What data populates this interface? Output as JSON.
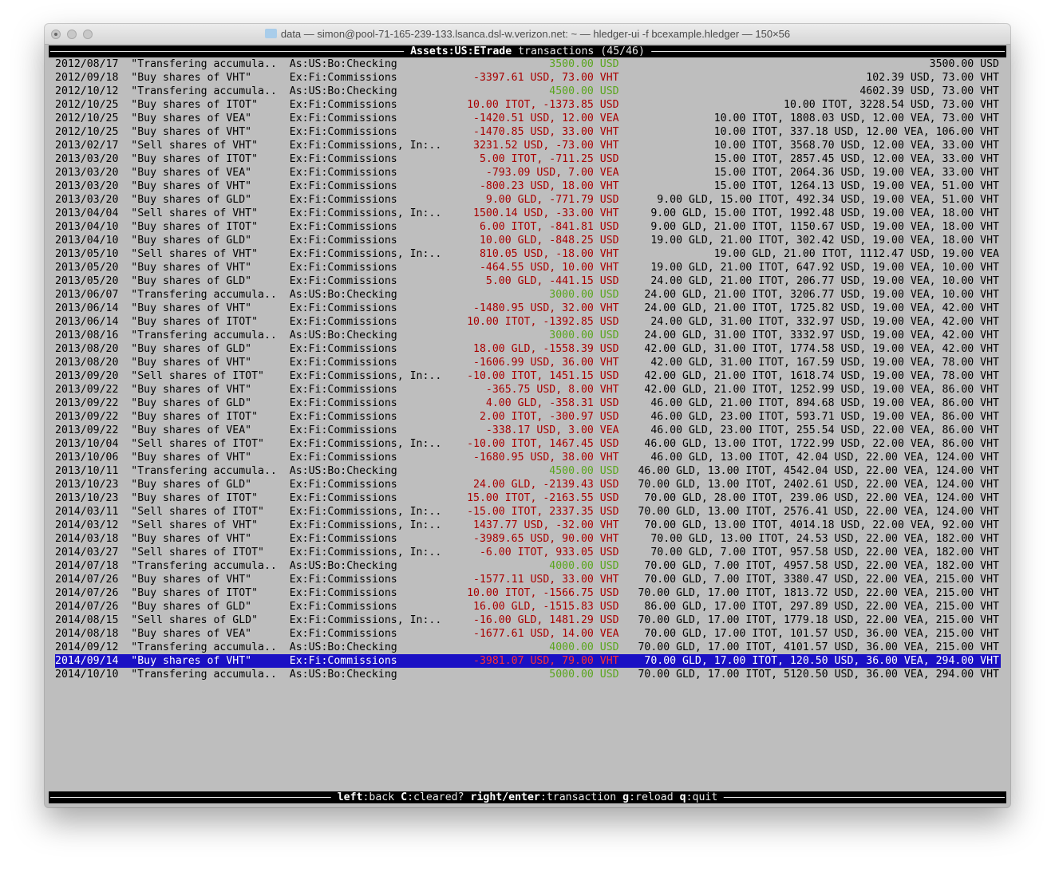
{
  "window": {
    "title": "data — simon@pool-71-165-239-133.lsanca.dsl-w.verizon.net: ~ — hledger-ui -f bcexample.hledger — 150×56"
  },
  "header": {
    "account": "Assets:US:ETrade",
    "suffix": " transactions (45/46)"
  },
  "footer": {
    "keys": [
      {
        "key": "left",
        "action": "back"
      },
      {
        "key": "C",
        "action": "cleared?"
      },
      {
        "key": "right/enter",
        "action": "transaction"
      },
      {
        "key": "g",
        "action": "reload"
      },
      {
        "key": "q",
        "action": "quit"
      }
    ]
  },
  "colors": {
    "background": "#bebebe",
    "positive": "#5aa51e",
    "negative": "#a80000",
    "selected_bg": "#1a10c4",
    "selected_negative": "#ff3030"
  },
  "selected_index": 44,
  "rows": [
    {
      "date": "2012/08/17",
      "desc": "\"Transfering accumula..",
      "acct": "As:US:Bo:Checking",
      "amt": "3500.00 USD",
      "bal": "3500.00 USD",
      "sign": "positive"
    },
    {
      "date": "2012/09/18",
      "desc": "\"Buy shares of VHT\"",
      "acct": "Ex:Fi:Commissions",
      "amt": "-3397.61 USD, 73.00 VHT",
      "bal": "102.39 USD, 73.00 VHT",
      "sign": "negative"
    },
    {
      "date": "2012/10/12",
      "desc": "\"Transfering accumula..",
      "acct": "As:US:Bo:Checking",
      "amt": "4500.00 USD",
      "bal": "4602.39 USD, 73.00 VHT",
      "sign": "positive"
    },
    {
      "date": "2012/10/25",
      "desc": "\"Buy shares of ITOT\"",
      "acct": "Ex:Fi:Commissions",
      "amt": "10.00 ITOT, -1373.85 USD",
      "bal": "10.00 ITOT, 3228.54 USD, 73.00 VHT",
      "sign": "negative"
    },
    {
      "date": "2012/10/25",
      "desc": "\"Buy shares of VEA\"",
      "acct": "Ex:Fi:Commissions",
      "amt": "-1420.51 USD, 12.00 VEA",
      "bal": "10.00 ITOT, 1808.03 USD, 12.00 VEA, 73.00 VHT",
      "sign": "negative"
    },
    {
      "date": "2012/10/25",
      "desc": "\"Buy shares of VHT\"",
      "acct": "Ex:Fi:Commissions",
      "amt": "-1470.85 USD, 33.00 VHT",
      "bal": "10.00 ITOT, 337.18 USD, 12.00 VEA, 106.00 VHT",
      "sign": "negative"
    },
    {
      "date": "2013/02/17",
      "desc": "\"Sell shares of VHT\"",
      "acct": "Ex:Fi:Commissions, In:..",
      "amt": "3231.52 USD, -73.00 VHT",
      "bal": "10.00 ITOT, 3568.70 USD, 12.00 VEA, 33.00 VHT",
      "sign": "negative"
    },
    {
      "date": "2013/03/20",
      "desc": "\"Buy shares of ITOT\"",
      "acct": "Ex:Fi:Commissions",
      "amt": "5.00 ITOT, -711.25 USD",
      "bal": "15.00 ITOT, 2857.45 USD, 12.00 VEA, 33.00 VHT",
      "sign": "negative"
    },
    {
      "date": "2013/03/20",
      "desc": "\"Buy shares of VEA\"",
      "acct": "Ex:Fi:Commissions",
      "amt": "-793.09 USD, 7.00 VEA",
      "bal": "15.00 ITOT, 2064.36 USD, 19.00 VEA, 33.00 VHT",
      "sign": "negative"
    },
    {
      "date": "2013/03/20",
      "desc": "\"Buy shares of VHT\"",
      "acct": "Ex:Fi:Commissions",
      "amt": "-800.23 USD, 18.00 VHT",
      "bal": "15.00 ITOT, 1264.13 USD, 19.00 VEA, 51.00 VHT",
      "sign": "negative"
    },
    {
      "date": "2013/03/20",
      "desc": "\"Buy shares of GLD\"",
      "acct": "Ex:Fi:Commissions",
      "amt": "9.00 GLD, -771.79 USD",
      "bal": "9.00 GLD, 15.00 ITOT, 492.34 USD, 19.00 VEA, 51.00 VHT",
      "sign": "negative"
    },
    {
      "date": "2013/04/04",
      "desc": "\"Sell shares of VHT\"",
      "acct": "Ex:Fi:Commissions, In:..",
      "amt": "1500.14 USD, -33.00 VHT",
      "bal": "9.00 GLD, 15.00 ITOT, 1992.48 USD, 19.00 VEA, 18.00 VHT",
      "sign": "negative"
    },
    {
      "date": "2013/04/10",
      "desc": "\"Buy shares of ITOT\"",
      "acct": "Ex:Fi:Commissions",
      "amt": "6.00 ITOT, -841.81 USD",
      "bal": "9.00 GLD, 21.00 ITOT, 1150.67 USD, 19.00 VEA, 18.00 VHT",
      "sign": "negative"
    },
    {
      "date": "2013/04/10",
      "desc": "\"Buy shares of GLD\"",
      "acct": "Ex:Fi:Commissions",
      "amt": "10.00 GLD, -848.25 USD",
      "bal": "19.00 GLD, 21.00 ITOT, 302.42 USD, 19.00 VEA, 18.00 VHT",
      "sign": "negative"
    },
    {
      "date": "2013/05/10",
      "desc": "\"Sell shares of VHT\"",
      "acct": "Ex:Fi:Commissions, In:..",
      "amt": "810.05 USD, -18.00 VHT",
      "bal": "19.00 GLD, 21.00 ITOT, 1112.47 USD, 19.00 VEA",
      "sign": "negative"
    },
    {
      "date": "2013/05/20",
      "desc": "\"Buy shares of VHT\"",
      "acct": "Ex:Fi:Commissions",
      "amt": "-464.55 USD, 10.00 VHT",
      "bal": "19.00 GLD, 21.00 ITOT, 647.92 USD, 19.00 VEA, 10.00 VHT",
      "sign": "negative"
    },
    {
      "date": "2013/05/20",
      "desc": "\"Buy shares of GLD\"",
      "acct": "Ex:Fi:Commissions",
      "amt": "5.00 GLD, -441.15 USD",
      "bal": "24.00 GLD, 21.00 ITOT, 206.77 USD, 19.00 VEA, 10.00 VHT",
      "sign": "negative"
    },
    {
      "date": "2013/06/07",
      "desc": "\"Transfering accumula..",
      "acct": "As:US:Bo:Checking",
      "amt": "3000.00 USD",
      "bal": "24.00 GLD, 21.00 ITOT, 3206.77 USD, 19.00 VEA, 10.00 VHT",
      "sign": "positive"
    },
    {
      "date": "2013/06/14",
      "desc": "\"Buy shares of VHT\"",
      "acct": "Ex:Fi:Commissions",
      "amt": "-1480.95 USD, 32.00 VHT",
      "bal": "24.00 GLD, 21.00 ITOT, 1725.82 USD, 19.00 VEA, 42.00 VHT",
      "sign": "negative"
    },
    {
      "date": "2013/06/14",
      "desc": "\"Buy shares of ITOT\"",
      "acct": "Ex:Fi:Commissions",
      "amt": "10.00 ITOT, -1392.85 USD",
      "bal": "24.00 GLD, 31.00 ITOT, 332.97 USD, 19.00 VEA, 42.00 VHT",
      "sign": "negative"
    },
    {
      "date": "2013/08/16",
      "desc": "\"Transfering accumula..",
      "acct": "As:US:Bo:Checking",
      "amt": "3000.00 USD",
      "bal": "24.00 GLD, 31.00 ITOT, 3332.97 USD, 19.00 VEA, 42.00 VHT",
      "sign": "positive"
    },
    {
      "date": "2013/08/20",
      "desc": "\"Buy shares of GLD\"",
      "acct": "Ex:Fi:Commissions",
      "amt": "18.00 GLD, -1558.39 USD",
      "bal": "42.00 GLD, 31.00 ITOT, 1774.58 USD, 19.00 VEA, 42.00 VHT",
      "sign": "negative"
    },
    {
      "date": "2013/08/20",
      "desc": "\"Buy shares of VHT\"",
      "acct": "Ex:Fi:Commissions",
      "amt": "-1606.99 USD, 36.00 VHT",
      "bal": "42.00 GLD, 31.00 ITOT, 167.59 USD, 19.00 VEA, 78.00 VHT",
      "sign": "negative"
    },
    {
      "date": "2013/09/20",
      "desc": "\"Sell shares of ITOT\"",
      "acct": "Ex:Fi:Commissions, In:..",
      "amt": "-10.00 ITOT, 1451.15 USD",
      "bal": "42.00 GLD, 21.00 ITOT, 1618.74 USD, 19.00 VEA, 78.00 VHT",
      "sign": "negative"
    },
    {
      "date": "2013/09/22",
      "desc": "\"Buy shares of VHT\"",
      "acct": "Ex:Fi:Commissions",
      "amt": "-365.75 USD, 8.00 VHT",
      "bal": "42.00 GLD, 21.00 ITOT, 1252.99 USD, 19.00 VEA, 86.00 VHT",
      "sign": "negative"
    },
    {
      "date": "2013/09/22",
      "desc": "\"Buy shares of GLD\"",
      "acct": "Ex:Fi:Commissions",
      "amt": "4.00 GLD, -358.31 USD",
      "bal": "46.00 GLD, 21.00 ITOT, 894.68 USD, 19.00 VEA, 86.00 VHT",
      "sign": "negative"
    },
    {
      "date": "2013/09/22",
      "desc": "\"Buy shares of ITOT\"",
      "acct": "Ex:Fi:Commissions",
      "amt": "2.00 ITOT, -300.97 USD",
      "bal": "46.00 GLD, 23.00 ITOT, 593.71 USD, 19.00 VEA, 86.00 VHT",
      "sign": "negative"
    },
    {
      "date": "2013/09/22",
      "desc": "\"Buy shares of VEA\"",
      "acct": "Ex:Fi:Commissions",
      "amt": "-338.17 USD, 3.00 VEA",
      "bal": "46.00 GLD, 23.00 ITOT, 255.54 USD, 22.00 VEA, 86.00 VHT",
      "sign": "negative"
    },
    {
      "date": "2013/10/04",
      "desc": "\"Sell shares of ITOT\"",
      "acct": "Ex:Fi:Commissions, In:..",
      "amt": "-10.00 ITOT, 1467.45 USD",
      "bal": "46.00 GLD, 13.00 ITOT, 1722.99 USD, 22.00 VEA, 86.00 VHT",
      "sign": "negative"
    },
    {
      "date": "2013/10/06",
      "desc": "\"Buy shares of VHT\"",
      "acct": "Ex:Fi:Commissions",
      "amt": "-1680.95 USD, 38.00 VHT",
      "bal": "46.00 GLD, 13.00 ITOT, 42.04 USD, 22.00 VEA, 124.00 VHT",
      "sign": "negative"
    },
    {
      "date": "2013/10/11",
      "desc": "\"Transfering accumula..",
      "acct": "As:US:Bo:Checking",
      "amt": "4500.00 USD",
      "bal": "46.00 GLD, 13.00 ITOT, 4542.04 USD, 22.00 VEA, 124.00 VHT",
      "sign": "positive"
    },
    {
      "date": "2013/10/23",
      "desc": "\"Buy shares of GLD\"",
      "acct": "Ex:Fi:Commissions",
      "amt": "24.00 GLD, -2139.43 USD",
      "bal": "70.00 GLD, 13.00 ITOT, 2402.61 USD, 22.00 VEA, 124.00 VHT",
      "sign": "negative"
    },
    {
      "date": "2013/10/23",
      "desc": "\"Buy shares of ITOT\"",
      "acct": "Ex:Fi:Commissions",
      "amt": "15.00 ITOT, -2163.55 USD",
      "bal": "70.00 GLD, 28.00 ITOT, 239.06 USD, 22.00 VEA, 124.00 VHT",
      "sign": "negative"
    },
    {
      "date": "2014/03/11",
      "desc": "\"Sell shares of ITOT\"",
      "acct": "Ex:Fi:Commissions, In:..",
      "amt": "-15.00 ITOT, 2337.35 USD",
      "bal": "70.00 GLD, 13.00 ITOT, 2576.41 USD, 22.00 VEA, 124.00 VHT",
      "sign": "negative"
    },
    {
      "date": "2014/03/12",
      "desc": "\"Sell shares of VHT\"",
      "acct": "Ex:Fi:Commissions, In:..",
      "amt": "1437.77 USD, -32.00 VHT",
      "bal": "70.00 GLD, 13.00 ITOT, 4014.18 USD, 22.00 VEA, 92.00 VHT",
      "sign": "negative"
    },
    {
      "date": "2014/03/18",
      "desc": "\"Buy shares of VHT\"",
      "acct": "Ex:Fi:Commissions",
      "amt": "-3989.65 USD, 90.00 VHT",
      "bal": "70.00 GLD, 13.00 ITOT, 24.53 USD, 22.00 VEA, 182.00 VHT",
      "sign": "negative"
    },
    {
      "date": "2014/03/27",
      "desc": "\"Sell shares of ITOT\"",
      "acct": "Ex:Fi:Commissions, In:..",
      "amt": "-6.00 ITOT, 933.05 USD",
      "bal": "70.00 GLD, 7.00 ITOT, 957.58 USD, 22.00 VEA, 182.00 VHT",
      "sign": "negative"
    },
    {
      "date": "2014/07/18",
      "desc": "\"Transfering accumula..",
      "acct": "As:US:Bo:Checking",
      "amt": "4000.00 USD",
      "bal": "70.00 GLD, 7.00 ITOT, 4957.58 USD, 22.00 VEA, 182.00 VHT",
      "sign": "positive"
    },
    {
      "date": "2014/07/26",
      "desc": "\"Buy shares of VHT\"",
      "acct": "Ex:Fi:Commissions",
      "amt": "-1577.11 USD, 33.00 VHT",
      "bal": "70.00 GLD, 7.00 ITOT, 3380.47 USD, 22.00 VEA, 215.00 VHT",
      "sign": "negative"
    },
    {
      "date": "2014/07/26",
      "desc": "\"Buy shares of ITOT\"",
      "acct": "Ex:Fi:Commissions",
      "amt": "10.00 ITOT, -1566.75 USD",
      "bal": "70.00 GLD, 17.00 ITOT, 1813.72 USD, 22.00 VEA, 215.00 VHT",
      "sign": "negative"
    },
    {
      "date": "2014/07/26",
      "desc": "\"Buy shares of GLD\"",
      "acct": "Ex:Fi:Commissions",
      "amt": "16.00 GLD, -1515.83 USD",
      "bal": "86.00 GLD, 17.00 ITOT, 297.89 USD, 22.00 VEA, 215.00 VHT",
      "sign": "negative"
    },
    {
      "date": "2014/08/15",
      "desc": "\"Sell shares of GLD\"",
      "acct": "Ex:Fi:Commissions, In:..",
      "amt": "-16.00 GLD, 1481.29 USD",
      "bal": "70.00 GLD, 17.00 ITOT, 1779.18 USD, 22.00 VEA, 215.00 VHT",
      "sign": "negative"
    },
    {
      "date": "2014/08/18",
      "desc": "\"Buy shares of VEA\"",
      "acct": "Ex:Fi:Commissions",
      "amt": "-1677.61 USD, 14.00 VEA",
      "bal": "70.00 GLD, 17.00 ITOT, 101.57 USD, 36.00 VEA, 215.00 VHT",
      "sign": "negative"
    },
    {
      "date": "2014/09/12",
      "desc": "\"Transfering accumula..",
      "acct": "As:US:Bo:Checking",
      "amt": "4000.00 USD",
      "bal": "70.00 GLD, 17.00 ITOT, 4101.57 USD, 36.00 VEA, 215.00 VHT",
      "sign": "positive"
    },
    {
      "date": "2014/09/14",
      "desc": "\"Buy shares of VHT\"",
      "acct": "Ex:Fi:Commissions",
      "amt": "-3981.07 USD, 79.00 VHT",
      "bal": "70.00 GLD, 17.00 ITOT, 120.50 USD, 36.00 VEA, 294.00 VHT",
      "sign": "negative"
    },
    {
      "date": "2014/10/10",
      "desc": "\"Transfering accumula..",
      "acct": "As:US:Bo:Checking",
      "amt": "5000.00 USD",
      "bal": "70.00 GLD, 17.00 ITOT, 5120.50 USD, 36.00 VEA, 294.00 VHT",
      "sign": "positive"
    }
  ]
}
